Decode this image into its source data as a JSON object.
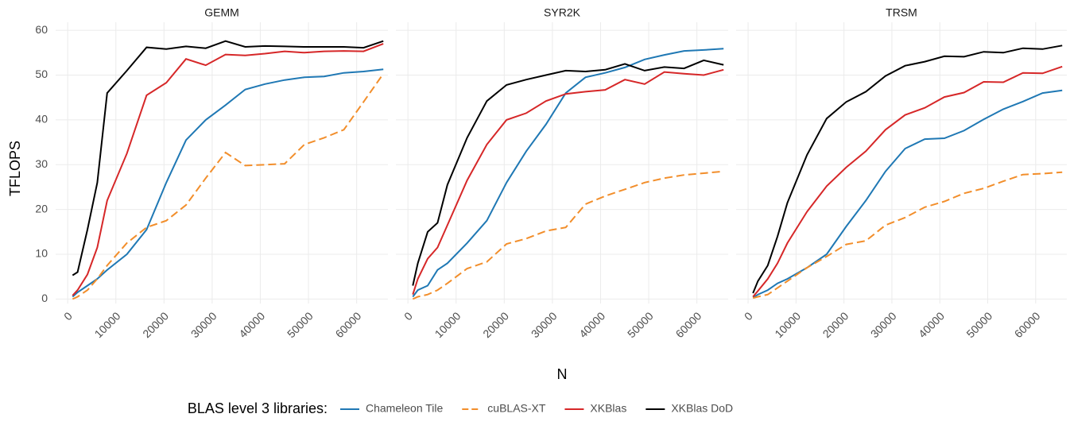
{
  "figure": {
    "ylabel": "TFLOPS",
    "xlabel": "N",
    "legend_title": "BLAS level 3 libraries:"
  },
  "chart_data": [
    {
      "type": "line",
      "title": "GEMM",
      "x": [
        1024,
        2048,
        4096,
        6144,
        8192,
        12288,
        16384,
        20480,
        24576,
        28672,
        32768,
        36864,
        40960,
        45056,
        49152,
        53248,
        57344,
        61440,
        65536
      ],
      "xlim": [
        -2500,
        66500
      ],
      "ylim": [
        -1,
        61.8
      ],
      "xticks": [
        0,
        10000,
        20000,
        30000,
        40000,
        50000,
        60000
      ],
      "yticks": [
        0,
        10,
        20,
        30,
        40,
        50,
        60
      ],
      "grid": true,
      "series": [
        {
          "name": "Chameleon Tile",
          "color": "#1f78b4",
          "linetype": "solid",
          "values": [
            0.5,
            1.5,
            3,
            4.5,
            6.5,
            10,
            15.5,
            26,
            35.5,
            40,
            43.3,
            46.8,
            48,
            48.9,
            49.5,
            49.7,
            50.5,
            50.8,
            51.3
          ]
        },
        {
          "name": "cuBLAS-XT",
          "color": "#f28e2b",
          "linetype": "dashed",
          "values": [
            0,
            0.5,
            2,
            4.5,
            7.5,
            12.5,
            16,
            17.5,
            21,
            27,
            32.7,
            29.8,
            30,
            30.2,
            34.5,
            36,
            37.8,
            44,
            50.3
          ]
        },
        {
          "name": "XKBlas",
          "color": "#d62728",
          "linetype": "solid",
          "values": [
            0.8,
            2,
            5.5,
            11.5,
            22,
            32.5,
            45.5,
            48.3,
            53.6,
            52.2,
            54.6,
            54.4,
            54.8,
            55.3,
            55,
            55.3,
            55.4,
            55.3,
            57
          ]
        },
        {
          "name": "XKBlas DoD",
          "color": "#000000",
          "linetype": "solid",
          "values": [
            5.3,
            6,
            15.5,
            26,
            46,
            51,
            56.2,
            55.8,
            56.4,
            56,
            57.6,
            56.3,
            56.5,
            56.4,
            56.3,
            56.3,
            56.3,
            56.1,
            57.6
          ]
        }
      ]
    },
    {
      "type": "line",
      "title": "SYR2K",
      "x": [
        1024,
        2048,
        4096,
        6144,
        8192,
        12288,
        16384,
        20480,
        24576,
        28672,
        32768,
        36864,
        40960,
        45056,
        49152,
        53248,
        57344,
        61440,
        65536
      ],
      "xlim": [
        -2500,
        66500
      ],
      "ylim": [
        -1,
        61.8
      ],
      "xticks": [
        0,
        10000,
        20000,
        30000,
        40000,
        50000,
        60000
      ],
      "yticks": [
        0,
        10,
        20,
        30,
        40,
        50,
        60
      ],
      "grid": true,
      "series": [
        {
          "name": "Chameleon Tile",
          "color": "#1f78b4",
          "linetype": "solid",
          "values": [
            0.5,
            2,
            3,
            6.5,
            8,
            12.5,
            17.5,
            26,
            33,
            39,
            46,
            49.5,
            50.5,
            51.7,
            53.5,
            54.5,
            55.4,
            55.6,
            55.9
          ]
        },
        {
          "name": "cuBLAS-XT",
          "color": "#f28e2b",
          "linetype": "dashed",
          "values": [
            0,
            0.5,
            1,
            2,
            3.5,
            6.8,
            8.3,
            12.3,
            13.5,
            15.2,
            16,
            21.2,
            23,
            24.5,
            26,
            27,
            27.7,
            28.1,
            28.5
          ]
        },
        {
          "name": "XKBlas",
          "color": "#d62728",
          "linetype": "solid",
          "values": [
            1,
            4.5,
            9,
            11.5,
            16.5,
            26.5,
            34.5,
            40,
            41.5,
            44.2,
            45.8,
            46.3,
            46.7,
            49,
            48,
            50.7,
            50.3,
            50,
            51.2
          ]
        },
        {
          "name": "XKBlas DoD",
          "color": "#000000",
          "linetype": "solid",
          "values": [
            3,
            8,
            15,
            17,
            25.5,
            36,
            44.2,
            47.8,
            49,
            50,
            51,
            50.8,
            51.2,
            52.5,
            51,
            51.8,
            51.5,
            53.3,
            52.3
          ]
        }
      ]
    },
    {
      "type": "line",
      "title": "TRSM",
      "x": [
        1024,
        2048,
        4096,
        6144,
        8192,
        12288,
        16384,
        20480,
        24576,
        28672,
        32768,
        36864,
        40960,
        45056,
        49152,
        53248,
        57344,
        61440,
        65536
      ],
      "xlim": [
        -2500,
        66500
      ],
      "ylim": [
        -1,
        61.8
      ],
      "xticks": [
        0,
        10000,
        20000,
        30000,
        40000,
        50000,
        60000
      ],
      "yticks": [
        0,
        10,
        20,
        30,
        40,
        50,
        60
      ],
      "grid": true,
      "series": [
        {
          "name": "Chameleon Tile",
          "color": "#1f78b4",
          "linetype": "solid",
          "values": [
            0.3,
            1,
            2,
            3.5,
            4.5,
            7,
            10,
            16.2,
            22,
            28.5,
            33.6,
            35.7,
            35.9,
            37.6,
            40.1,
            42.4,
            44.1,
            46,
            46.6
          ]
        },
        {
          "name": "cuBLAS-XT",
          "color": "#f28e2b",
          "linetype": "dashed",
          "values": [
            0.2,
            0.5,
            1,
            2.5,
            4,
            7,
            9.5,
            12.2,
            13,
            16.5,
            18.2,
            20.5,
            21.8,
            23.6,
            24.7,
            26.3,
            27.8,
            28,
            28.3
          ]
        },
        {
          "name": "XKBlas",
          "color": "#d62728",
          "linetype": "solid",
          "values": [
            0.5,
            1.8,
            4.5,
            8,
            12.5,
            19.5,
            25.2,
            29.4,
            33,
            37.8,
            41.1,
            42.7,
            45.1,
            46.1,
            48.5,
            48.4,
            50.5,
            50.4,
            51.9
          ]
        },
        {
          "name": "XKBlas DoD",
          "color": "#000000",
          "linetype": "solid",
          "values": [
            1.3,
            4,
            7.5,
            14,
            21.5,
            32.2,
            40.3,
            44,
            46.3,
            49.8,
            52.1,
            53,
            54.2,
            54.1,
            55.2,
            55,
            56,
            55.8,
            56.6
          ]
        }
      ]
    }
  ]
}
